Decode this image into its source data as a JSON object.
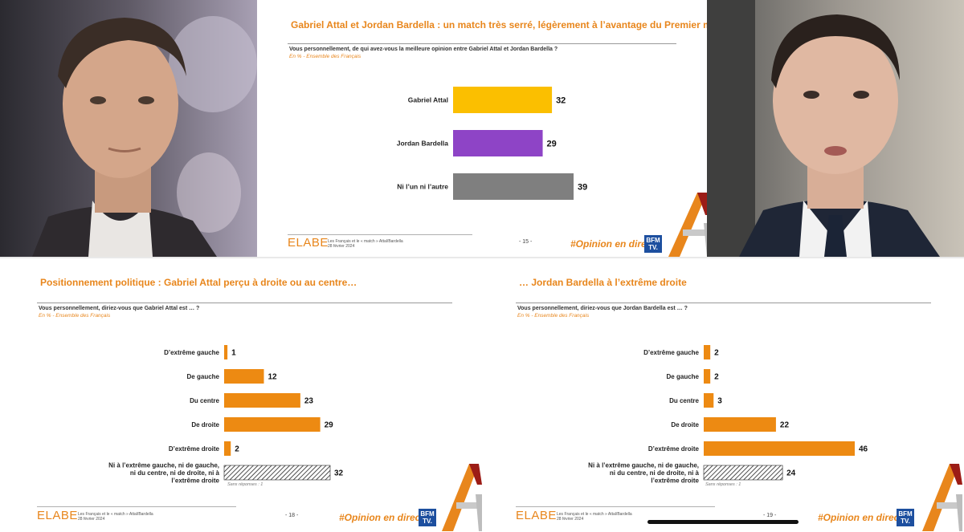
{
  "colors": {
    "accent": "#e8861c",
    "attal": "#fbbf00",
    "bardella": "#8e44c6",
    "neither": "#7f7f7f",
    "orange_bar": "#ed8a12",
    "bfm_blue": "#1d4f9f"
  },
  "slides": [
    {
      "title": "Gabriel Attal et Jordan Bardella : un match très serré, légèrement à l’avantage du Premier ministre",
      "question": "Vous personnellement, de qui avez-vous la meilleure opinion entre Gabriel Attal et Jordan Bardella ?",
      "subnote": "En % - Ensemble des Français",
      "page": "- 15 -",
      "footer_line1": "Les Français et le « match » Attal/Bardella",
      "footer_line2": "28 février 2024",
      "brand": "ELABE",
      "hashtag": "#Opinion en direct",
      "bfm_line1": "BFM",
      "bfm_line2": "TV."
    },
    {
      "title": "Positionnement politique : Gabriel Attal perçu à droite ou au centre…",
      "question": "Vous personnellement, diriez-vous que Gabriel Attal est … ?",
      "subnote": "En % - Ensemble des Français",
      "sans_reponse": "Sans réponses : 1",
      "page": "- 18 -",
      "footer_line1": "Les Français et le « match » Attal/Bardella",
      "footer_line2": "28 février 2024",
      "brand": "ELABE",
      "hashtag": "#Opinion en direct",
      "bfm_line1": "BFM",
      "bfm_line2": "TV."
    },
    {
      "title": "… Jordan Bardella à l’extrême droite",
      "question": "Vous personnellement, diriez-vous que Jordan Bardella est … ?",
      "subnote": "En % - Ensemble des Français",
      "sans_reponse": "Sans réponses : 1",
      "page": "- 19 -",
      "footer_line1": "Les Français et le « match » Attal/Bardella",
      "footer_line2": "28 février 2024",
      "brand": "ELABE",
      "hashtag": "#Opinion en direct",
      "bfm_line1": "BFM",
      "bfm_line2": "TV."
    }
  ],
  "chart_data": [
    {
      "type": "bar",
      "orientation": "horizontal",
      "categories": [
        "Gabriel Attal",
        "Jordan Bardella",
        "Ni l’un ni l’autre"
      ],
      "values": [
        32,
        29,
        39
      ],
      "colors": [
        "#fbbf00",
        "#8e44c6",
        "#7f7f7f"
      ],
      "xlim": [
        0,
        39
      ]
    },
    {
      "type": "bar",
      "orientation": "horizontal",
      "categories": [
        "D’extrême gauche",
        "De gauche",
        "Du centre",
        "De droite",
        "D’extrême droite",
        "Ni à l’extrême gauche, ni de gauche, ni du centre, ni de droite, ni à l’extrême droite"
      ],
      "values": [
        1,
        12,
        23,
        29,
        2,
        32
      ],
      "hatched": [
        false,
        false,
        false,
        false,
        false,
        true
      ],
      "xlim": [
        0,
        32
      ]
    },
    {
      "type": "bar",
      "orientation": "horizontal",
      "categories": [
        "D’extrême gauche",
        "De gauche",
        "Du centre",
        "De droite",
        "D’extrême droite",
        "Ni à l’extrême gauche, ni de gauche, ni du centre, ni de droite, ni à l’extrême droite"
      ],
      "values": [
        2,
        2,
        3,
        22,
        46,
        24
      ],
      "hatched": [
        false,
        false,
        false,
        false,
        false,
        true
      ],
      "xlim": [
        0,
        46
      ]
    }
  ]
}
